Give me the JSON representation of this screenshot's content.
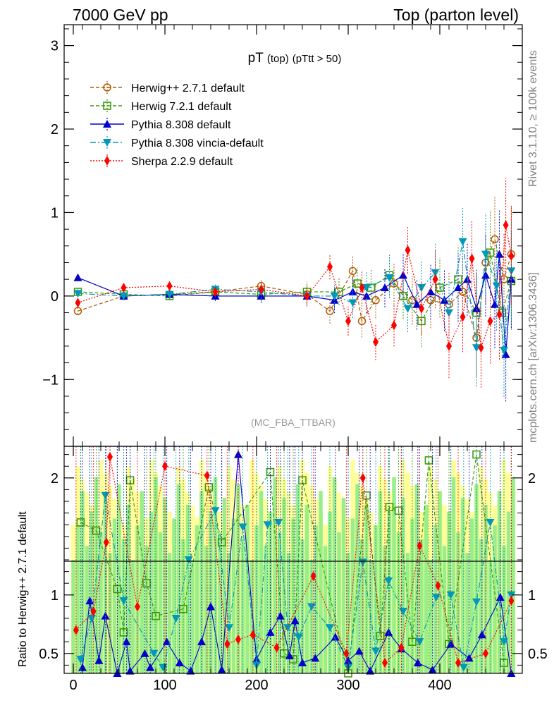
{
  "header": {
    "left": "7000 GeV pp",
    "right": "Top (parton level)"
  },
  "side_text": {
    "rivet": "Rivet 3.1.10, ≥ 100k events",
    "site": "mcplots.cern.ch [arXiv:1306.3436]"
  },
  "chart_data": [
    {
      "type": "line",
      "panel": "main",
      "title_main": "pT",
      "title_sub1": "(top)",
      "title_sub2": "(pTtt > 50)",
      "watermark": "(MC_FBA_TTBAR)",
      "xlim": [
        -10,
        490
      ],
      "ylim": [
        -1.8,
        3.25
      ],
      "yticks": [
        -1,
        0,
        1,
        2,
        3
      ],
      "ytick_labels": [
        "−1",
        "0",
        "1",
        "2",
        "3"
      ],
      "legend_position": "top-left",
      "series": [
        {
          "name": "Herwig++ 2.7.1 default",
          "color": "#b35900",
          "marker": "open-circle",
          "x": [
            5,
            55,
            105,
            155,
            205,
            255,
            280,
            305,
            315,
            330,
            350,
            370,
            390,
            410,
            425,
            440,
            450,
            460,
            470,
            478
          ],
          "y": [
            -0.18,
            0.0,
            0.02,
            0.05,
            0.12,
            0.02,
            -0.18,
            0.3,
            -0.3,
            -0.05,
            0.15,
            -0.05,
            -0.05,
            -0.1,
            0.05,
            -0.5,
            0.4,
            0.68,
            0.2,
            0.5
          ]
        },
        {
          "name": "Herwig 7.2.1 default",
          "color": "#339900",
          "marker": "open-square",
          "x": [
            5,
            55,
            105,
            155,
            205,
            255,
            290,
            310,
            325,
            345,
            360,
            380,
            400,
            420,
            440,
            455,
            468,
            478
          ],
          "y": [
            0.05,
            0.02,
            0.0,
            0.05,
            0.02,
            0.05,
            0.05,
            0.15,
            0.1,
            0.25,
            0.0,
            -0.3,
            0.1,
            0.2,
            -0.2,
            0.52,
            -0.2,
            0.18
          ]
        },
        {
          "name": "Pythia 8.308 default",
          "color": "#0000cc",
          "marker": "filled-triangle-up",
          "x": [
            5,
            55,
            105,
            155,
            205,
            255,
            285,
            305,
            320,
            340,
            360,
            375,
            390,
            405,
            420,
            430,
            440,
            450,
            460,
            465,
            472,
            478
          ],
          "y": [
            0.22,
            0.0,
            0.02,
            0.0,
            0.0,
            0.0,
            -0.05,
            0.05,
            0.0,
            0.1,
            0.25,
            -0.1,
            0.05,
            -0.05,
            0.1,
            0.2,
            -0.15,
            0.25,
            -0.1,
            0.5,
            -0.7,
            0.2
          ]
        },
        {
          "name": "Pythia 8.308 vincia-default",
          "color": "#0099bb",
          "marker": "filled-triangle-down",
          "x": [
            5,
            55,
            105,
            155,
            205,
            255,
            285,
            305,
            320,
            345,
            365,
            380,
            395,
            410,
            425,
            440,
            450,
            462,
            470,
            478
          ],
          "y": [
            0.03,
            0.0,
            0.02,
            0.08,
            0.05,
            0.0,
            0.0,
            -0.08,
            0.1,
            0.22,
            -0.15,
            0.1,
            0.28,
            -0.2,
            0.65,
            -0.62,
            0.5,
            0.12,
            -0.65,
            0.3
          ]
        },
        {
          "name": "Sherpa 2.2.9 default",
          "color": "#ff0000",
          "marker": "filled-diamond",
          "x": [
            5,
            55,
            105,
            155,
            205,
            255,
            280,
            300,
            315,
            330,
            350,
            365,
            380,
            395,
            410,
            425,
            435,
            445,
            455,
            465,
            472,
            478
          ],
          "y": [
            -0.08,
            0.1,
            0.12,
            0.05,
            0.08,
            0.0,
            0.35,
            -0.3,
            0.1,
            -0.55,
            -0.35,
            0.55,
            -0.15,
            0.2,
            -0.6,
            -0.25,
            0.45,
            -0.62,
            -0.3,
            -0.22,
            0.85,
            0.48
          ]
        }
      ]
    },
    {
      "type": "line",
      "panel": "ratio",
      "ylabel": "Ratio to Herwig++ 2.7.1 default",
      "xlim": [
        -10,
        490
      ],
      "ylim": [
        0.33,
        2.27
      ],
      "yticks": [
        0.5,
        1,
        2
      ],
      "ytick_labels": [
        "0.5",
        "1",
        "2"
      ],
      "xticks": [
        0,
        100,
        200,
        300,
        400
      ],
      "xtick_labels": [
        "0",
        "100",
        "200",
        "300",
        "400"
      ],
      "reference_line": 1,
      "series": [
        {
          "name": "Herwig 7.2.1 default",
          "x": [
            8,
            25,
            48,
            55,
            62,
            80,
            90,
            120,
            148,
            162,
            215,
            230,
            240,
            250,
            300,
            320,
            335,
            345,
            355,
            370,
            388,
            410,
            440,
            470
          ],
          "y": [
            1.62,
            1.55,
            1.05,
            0.68,
            1.98,
            1.1,
            0.82,
            0.88,
            1.92,
            1.45,
            2.05,
            0.5,
            0.45,
            1.98,
            0.33,
            1.85,
            0.65,
            1.75,
            1.72,
            0.6,
            2.15,
            0.58,
            2.2,
            0.42
          ]
        },
        {
          "name": "Pythia 8.308 default",
          "x": [
            10,
            18,
            28,
            35,
            48,
            58,
            62,
            78,
            84,
            102,
            116,
            128,
            140,
            150,
            162,
            180,
            200,
            215,
            226,
            236,
            242,
            250,
            264,
            286,
            300,
            312,
            324,
            344,
            358,
            376,
            392,
            412,
            432,
            446,
            466,
            478
          ],
          "y": [
            0.38,
            0.95,
            0.44,
            0.82,
            0.33,
            0.6,
            0.35,
            0.5,
            0.38,
            0.6,
            0.42,
            0.35,
            0.6,
            0.9,
            0.36,
            2.2,
            0.45,
            0.68,
            0.82,
            0.48,
            0.78,
            0.42,
            0.46,
            0.64,
            0.44,
            0.52,
            0.35,
            0.68,
            0.54,
            0.42,
            0.36,
            0.58,
            0.46,
            0.66,
            0.98,
            0.32
          ]
        },
        {
          "name": "Pythia 8.308 vincia-default",
          "x": [
            8,
            20,
            35,
            55,
            88,
            98,
            112,
            126,
            155,
            170,
            185,
            200,
            212,
            224,
            234,
            246,
            260,
            280,
            300,
            316,
            330,
            344,
            360,
            378,
            396,
            412,
            426,
            440,
            455,
            470,
            478
          ],
          "y": [
            0.45,
            0.8,
            1.85,
            0.95,
            0.5,
            0.38,
            0.8,
            1.3,
            1.72,
            0.72,
            1.58,
            0.4,
            1.6,
            1.62,
            0.72,
            0.64,
            0.9,
            0.72,
            0.38,
            1.28,
            0.52,
            1.12,
            0.86,
            0.6,
            0.98,
            1.0,
            0.38,
            0.94,
            1.62,
            0.6,
            1.0
          ]
        },
        {
          "name": "Sherpa 2.2.9 default",
          "x": [
            3,
            22,
            36,
            40,
            70,
            100,
            146,
            168,
            180,
            196,
            222,
            262,
            298,
            316,
            340,
            358,
            378,
            398,
            420,
            450,
            478
          ],
          "y": [
            0.7,
            0.86,
            1.45,
            2.18,
            0.9,
            2.1,
            2.02,
            0.58,
            0.62,
            0.66,
            0.55,
            1.16,
            0.5,
            2.0,
            0.42,
            0.55,
            1.42,
            1.08,
            0.42,
            0.5,
            0.95
          ]
        }
      ]
    }
  ]
}
